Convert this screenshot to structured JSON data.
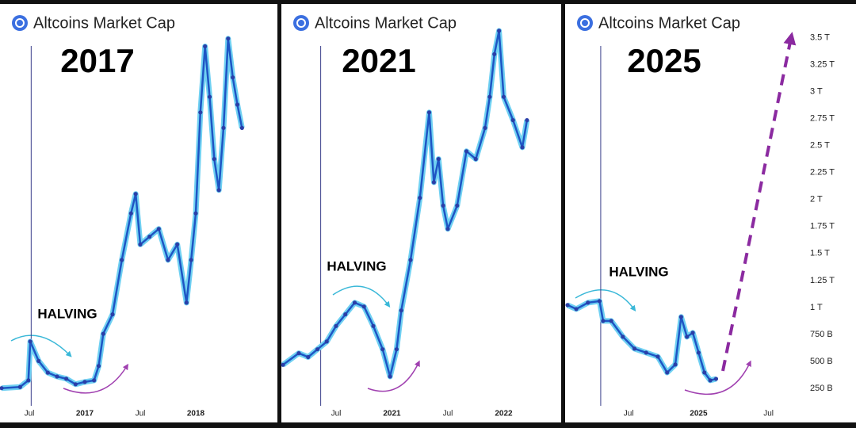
{
  "chart_data": [
    {
      "type": "line",
      "title": "Altcoins Market Cap",
      "annotations": [
        "2017",
        "HALVING"
      ],
      "halving_x": 6.2,
      "x": [
        3,
        5,
        5.9,
        6.1,
        7,
        8,
        9,
        10,
        11,
        12,
        13,
        13.5,
        14,
        15,
        16,
        17,
        17.5,
        18,
        19,
        20,
        21,
        22,
        23,
        23.5,
        24,
        24.5,
        25,
        25.5,
        26,
        26.5,
        27,
        27.5,
        28,
        28.5,
        29
      ],
      "values": [
        7,
        7.3,
        9,
        19,
        14,
        11,
        10,
        9.4,
        8,
        8.6,
        9,
        12.7,
        21,
        26,
        40,
        52,
        57,
        44,
        46,
        48,
        40,
        44,
        29,
        40,
        52,
        78,
        95,
        82,
        66,
        58,
        74,
        97,
        87,
        80,
        74
      ],
      "color": "#1e55c4",
      "xlim": [
        3,
        30
      ],
      "ylim": [
        0,
        100
      ],
      "xticks": [
        {
          "value": 6,
          "label": "Jul"
        },
        {
          "value": 12,
          "label": "2017"
        },
        {
          "value": 18,
          "label": "Jul"
        },
        {
          "value": 24,
          "label": "2018"
        }
      ]
    },
    {
      "type": "line",
      "title": "Altcoins Market Cap",
      "annotations": [
        "2021",
        "HALVING"
      ],
      "halving_x": 4.35,
      "x": [
        0.3,
        2,
        3,
        4,
        5,
        6,
        7,
        8,
        9,
        10,
        11,
        11.8,
        12.5,
        13,
        14,
        15,
        16,
        16.5,
        17,
        17.5,
        18,
        19,
        20,
        21,
        22,
        22.5,
        23,
        23.5,
        24,
        25,
        26,
        26.5
      ],
      "values": [
        13,
        16,
        15,
        17,
        19,
        23,
        26,
        29,
        28,
        23,
        17,
        10,
        17,
        27,
        40,
        56,
        78,
        60,
        66,
        54,
        48,
        54,
        68,
        66,
        74,
        82,
        93,
        99,
        82,
        76,
        69,
        76
      ],
      "color": "#1e55c4",
      "xlim": [
        0,
        28
      ],
      "ylim": [
        0,
        100
      ],
      "xticks": [
        {
          "value": 6,
          "label": "Jul"
        },
        {
          "value": 12,
          "label": "2021"
        },
        {
          "value": 18,
          "label": "Jul"
        },
        {
          "value": 24,
          "label": "2022"
        }
      ]
    },
    {
      "type": "line",
      "title": "Altcoins Market Cap",
      "annotations": [
        "2025",
        "HALVING"
      ],
      "halving_x": 3.6,
      "x": [
        0.75,
        1.5,
        2.5,
        3.5,
        3.8,
        4.5,
        5.5,
        6.5,
        7.5,
        8.5,
        9.3,
        10,
        10.5,
        11,
        11.5,
        12,
        12.5,
        13,
        13.5
      ],
      "values": [
        1022,
        985,
        1044,
        1059,
        875,
        875,
        728,
        618,
        581,
        544,
        397,
        471,
        912,
        728,
        765,
        581,
        397,
        324,
        338
      ],
      "color": "#1e55c4",
      "xlim": [
        0,
        21.7
      ],
      "ylim": [
        0,
        3600
      ],
      "xticks": [
        {
          "value": 6,
          "label": "Jul"
        },
        {
          "value": 12,
          "label": "2025"
        },
        {
          "value": 18,
          "label": "Jul"
        }
      ],
      "yticks": [
        {
          "value": 3500,
          "label": "3.5 T"
        },
        {
          "value": 3250,
          "label": "3.25 T"
        },
        {
          "value": 3000,
          "label": "3 T"
        },
        {
          "value": 2750,
          "label": "2.75 T"
        },
        {
          "value": 2500,
          "label": "2.5 T"
        },
        {
          "value": 2250,
          "label": "2.25 T"
        },
        {
          "value": 2000,
          "label": "2 T"
        },
        {
          "value": 1750,
          "label": "1.75 T"
        },
        {
          "value": 1500,
          "label": "1.5 T"
        },
        {
          "value": 1250,
          "label": "1.25 T"
        },
        {
          "value": 1000,
          "label": "1 T"
        },
        {
          "value": 750,
          "label": "750 B"
        },
        {
          "value": 500,
          "label": "500 B"
        },
        {
          "value": 250,
          "label": "250 B"
        }
      ]
    }
  ]
}
